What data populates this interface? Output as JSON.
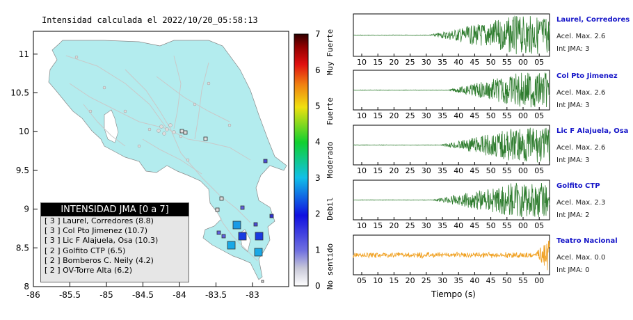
{
  "title": "Intensidad calculada el 2022/10/20_05:58:13",
  "map": {
    "lon_ticks": [
      "-86",
      "-85.5",
      "-85",
      "-84.5",
      "-84",
      "-83.5",
      "-83"
    ],
    "lat_ticks": [
      "8",
      "8.5",
      "9",
      "9.5",
      "10",
      "10.5",
      "11"
    ],
    "land_color": "#b3ecee",
    "sea_color": "#ffffff"
  },
  "legend": {
    "title": "INTENSIDAD JMA [0 a 7]",
    "items": [
      "[ 3 ]  Laurel, Corredores (8.8)",
      "[ 3 ]  Col Pto Jimenez (10.7)",
      "[ 3 ]  Lic F Alajuela, Osa (10.3)",
      "[ 2 ]  Golfito CTP (6.5)",
      "[ 2 ]  Bomberos C. Neily (4.2)",
      "[ 2 ]  OV-Torre Alta (6.2)"
    ]
  },
  "color_scale": {
    "ticks": [
      "0",
      "1",
      "2",
      "3",
      "4",
      "5",
      "6",
      "7"
    ],
    "labels": [
      "No sentido",
      "Debil",
      "Moderado",
      "Fuerte",
      "Muy Fuerte"
    ]
  },
  "stations": [
    {
      "name": "Laurel, Corredores",
      "accel": "Acel. Max. 2.6",
      "jma": "Int JMA: 3",
      "ticks": [
        "10",
        "15",
        "20",
        "25",
        "30",
        "35",
        "40",
        "45",
        "50",
        "55",
        "00",
        "05"
      ],
      "color": "#2f7d2f"
    },
    {
      "name": "Col Pto Jimenez",
      "accel": "Acel. Max. 2.6",
      "jma": "Int JMA: 3",
      "ticks": [
        "10",
        "15",
        "20",
        "25",
        "30",
        "35",
        "40",
        "45",
        "50",
        "55",
        "00",
        "05"
      ],
      "color": "#2f7d2f"
    },
    {
      "name": "Lic F Alajuela, Osa",
      "accel": "Acel. Max. 2.6",
      "jma": "Int JMA: 3",
      "ticks": [
        "10",
        "15",
        "20",
        "25",
        "30",
        "35",
        "40",
        "45",
        "50",
        "55",
        "00",
        "05"
      ],
      "color": "#2f7d2f"
    },
    {
      "name": "Golfito CTP",
      "accel": "Acel. Max. 2.3",
      "jma": "Int JMA: 2",
      "ticks": [
        "10",
        "15",
        "20",
        "25",
        "30",
        "35",
        "40",
        "45",
        "50",
        "55",
        "00",
        "05"
      ],
      "color": "#2f7d2f"
    },
    {
      "name": "Teatro Nacional",
      "accel": "Acel. Max. 0.0",
      "jma": "Int JMA: 0",
      "ticks": [
        "05",
        "10",
        "15",
        "20",
        "25",
        "30",
        "35",
        "40",
        "45",
        "50",
        "55",
        "00"
      ],
      "color": "#f0a020"
    }
  ],
  "x_axis_label": "Tiempo (s)"
}
